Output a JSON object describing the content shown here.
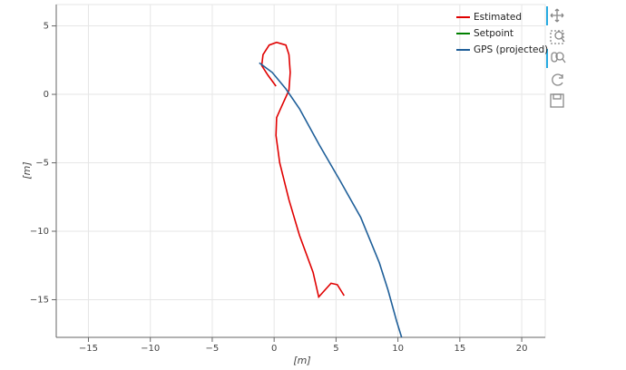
{
  "chart_data": {
    "type": "line",
    "xlabel": "[m]",
    "ylabel": "[m]",
    "xlim": [
      -17.6,
      21.9
    ],
    "ylim": [
      -17.75,
      6.56
    ],
    "xticks": [
      {
        "value": -15,
        "label": "−15"
      },
      {
        "value": -10,
        "label": "−10"
      },
      {
        "value": -5,
        "label": "−5"
      },
      0,
      5,
      10,
      15,
      20
    ],
    "yticks": [
      5,
      0,
      {
        "value": -5,
        "label": "−5"
      },
      {
        "value": -10,
        "label": "−10"
      },
      {
        "value": -15,
        "label": "−15"
      }
    ],
    "grid": true,
    "legend": "top-right",
    "series": [
      {
        "name": "Estimated",
        "color": "#e00000",
        "x": [
          0.15,
          -0.5,
          -1.0,
          -0.9,
          -0.4,
          0.2,
          0.95,
          1.2,
          1.3,
          1.2,
          0.6,
          0.2,
          0.15,
          0.45,
          1.2,
          2.05,
          3.15,
          3.6,
          4.1,
          4.6,
          5.1,
          5.65
        ],
        "values": [
          0.6,
          1.4,
          2.1,
          2.9,
          3.6,
          3.8,
          3.6,
          2.9,
          1.6,
          0.3,
          -0.9,
          -1.7,
          -3.0,
          -5.0,
          -7.7,
          -10.3,
          -13.0,
          -14.8,
          -14.3,
          -13.8,
          -13.9,
          -14.7
        ]
      },
      {
        "name": "Setpoint",
        "color": "#008000",
        "x": [],
        "values": []
      },
      {
        "name": "GPS (projected)",
        "color": "#1f5f99",
        "x": [
          -1.2,
          -0.15,
          0.95,
          2.05,
          3.65,
          5.35,
          7.0,
          8.5,
          9.2,
          9.9,
          10.3
        ],
        "values": [
          2.3,
          1.6,
          0.4,
          -1.05,
          -3.7,
          -6.35,
          -9.0,
          -12.3,
          -14.3,
          -16.6,
          -17.75
        ]
      }
    ]
  }
}
